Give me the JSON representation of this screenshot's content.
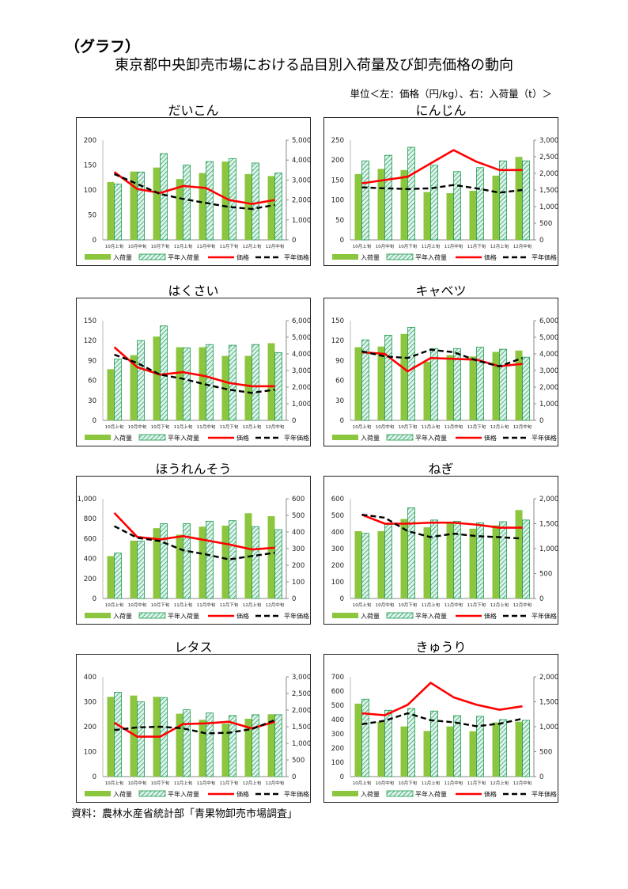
{
  "header": {
    "label": "（グラフ）",
    "title": "東京都中央卸売市場における品目別入荷量及び卸売価格の動向",
    "unit": "単位＜左：価格（円/kg）、右：入荷量（t）＞"
  },
  "source": "資料：農林水産省統計部「青果物卸売市場調査」",
  "legend": {
    "volume": "入荷量",
    "avg_volume": "平年入荷量",
    "price": "価格",
    "avg_price": "平年価格"
  },
  "colors": {
    "volume": "#8cc63f",
    "avg_volume_fill": "#dff3ee",
    "avg_volume_hatch": "#1a9a4a",
    "price": "#ff0000",
    "avg_price": "#000000"
  },
  "categories": [
    "10月上旬",
    "10月中旬",
    "10月下旬",
    "11月上旬",
    "11月中旬",
    "11月下旬",
    "12月上旬",
    "12月中旬"
  ],
  "chart_data": [
    {
      "type": "bar+line",
      "title": "だいこん",
      "ylim_left": [
        0,
        200
      ],
      "ystep_left": 50,
      "ylim_right": [
        0,
        5000
      ],
      "ystep_right": 1000,
      "volume": [
        116,
        137,
        145,
        122,
        134,
        157,
        132,
        128
      ],
      "avg_volume": [
        112,
        136,
        173,
        150,
        157,
        163,
        154,
        134
      ],
      "price": [
        3400,
        2550,
        2350,
        2700,
        2600,
        2000,
        1800,
        2000
      ],
      "avg_price": [
        3300,
        2800,
        2300,
        2050,
        1850,
        1650,
        1550,
        1750
      ]
    },
    {
      "type": "bar+line",
      "title": "にんじん",
      "ylim_left": [
        0,
        250
      ],
      "ystep_left": 50,
      "ylim_right": [
        0,
        3000
      ],
      "ystep_right": 500,
      "volume": [
        165,
        178,
        175,
        120,
        117,
        123,
        161,
        208
      ],
      "avg_volume": [
        198,
        212,
        232,
        187,
        171,
        181,
        198,
        198
      ],
      "price": [
        1700,
        1800,
        1900,
        2300,
        2700,
        2350,
        2100,
        2100
      ],
      "avg_price": [
        1580,
        1550,
        1530,
        1550,
        1650,
        1550,
        1420,
        1500
      ]
    },
    {
      "type": "bar+line",
      "title": "はくさい",
      "ylim_left": [
        0,
        150
      ],
      "ystep_left": 30,
      "ylim_right": [
        0,
        6000
      ],
      "ystep_right": 1000,
      "volume": [
        77,
        98,
        126,
        110,
        110,
        97,
        97,
        116
      ],
      "avg_volume": [
        92,
        120,
        142,
        109,
        114,
        113,
        114,
        102
      ],
      "price": [
        4400,
        3200,
        2750,
        2900,
        2650,
        2250,
        2050,
        2050
      ],
      "avg_price": [
        3950,
        3450,
        2750,
        2500,
        2150,
        1850,
        1650,
        1850
      ]
    },
    {
      "type": "bar+line",
      "title": "キャベツ",
      "ylim_left": [
        0,
        150
      ],
      "ystep_left": 30,
      "ylim_right": [
        0,
        6000
      ],
      "ystep_right": 1000,
      "volume": [
        110,
        111,
        130,
        88,
        98,
        96,
        103,
        105
      ],
      "avg_volume": [
        121,
        128,
        140,
        108,
        108,
        110,
        107,
        95
      ],
      "price": [
        4100,
        4000,
        2950,
        3750,
        3700,
        3650,
        3250,
        3400
      ],
      "avg_price": [
        4150,
        3850,
        3750,
        4250,
        4100,
        3600,
        3250,
        3750
      ]
    },
    {
      "type": "bar+line",
      "title": "ほうれんそう",
      "ylim_left": [
        0,
        1000
      ],
      "ystep_left": 200,
      "ylim_right": [
        0,
        600
      ],
      "ystep_right": 100,
      "volume": [
        425,
        580,
        705,
        640,
        720,
        730,
        855,
        825
      ],
      "avg_volume": [
        455,
        575,
        750,
        750,
        775,
        780,
        720,
        690
      ],
      "price": [
        515,
        370,
        355,
        375,
        350,
        325,
        295,
        305
      ],
      "avg_price": [
        435,
        365,
        345,
        290,
        265,
        235,
        255,
        275
      ]
    },
    {
      "type": "bar+line",
      "title": "ねぎ",
      "ylim_left": [
        0,
        600
      ],
      "ystep_left": 100,
      "ylim_right": [
        0,
        2000
      ],
      "ystep_right": 500,
      "volume": [
        405,
        405,
        478,
        428,
        460,
        420,
        440,
        532
      ],
      "avg_volume": [
        392,
        445,
        545,
        472,
        465,
        455,
        462,
        472
      ],
      "price": [
        1680,
        1500,
        1500,
        1520,
        1520,
        1480,
        1420,
        1420
      ],
      "avg_price": [
        1680,
        1620,
        1350,
        1230,
        1300,
        1250,
        1230,
        1200
      ]
    },
    {
      "type": "bar+line",
      "title": "レタス",
      "ylim_left": [
        0,
        400
      ],
      "ystep_left": 100,
      "ylim_right": [
        0,
        3000
      ],
      "ystep_right": 500,
      "volume": [
        320,
        325,
        320,
        252,
        228,
        212,
        232,
        250
      ],
      "avg_volume": [
        338,
        300,
        317,
        268,
        255,
        245,
        248,
        248
      ],
      "price": [
        1620,
        1200,
        1200,
        1580,
        1600,
        1650,
        1450,
        1650
      ],
      "avg_price": [
        1400,
        1480,
        1500,
        1450,
        1300,
        1320,
        1430,
        1700
      ]
    },
    {
      "type": "bar+line",
      "title": "きゅうり",
      "ylim_left": [
        0,
        700
      ],
      "ystep_left": 100,
      "ylim_right": [
        0,
        2000
      ],
      "ystep_right": 500,
      "volume": [
        512,
        385,
        352,
        320,
        352,
        318,
        380,
        385
      ],
      "avg_volume": [
        543,
        465,
        478,
        460,
        428,
        423,
        400,
        395
      ],
      "price": [
        1270,
        1230,
        1440,
        1880,
        1590,
        1440,
        1340,
        1410
      ],
      "avg_price": [
        1050,
        1120,
        1270,
        1130,
        1090,
        1010,
        1060,
        1160
      ]
    }
  ]
}
